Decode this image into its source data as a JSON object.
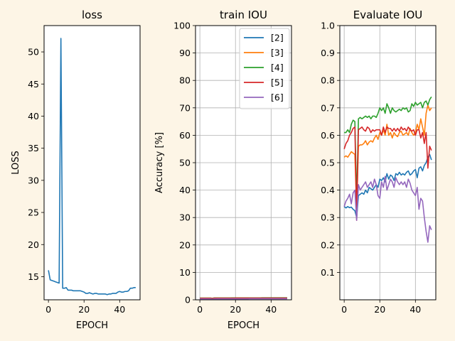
{
  "figure": {
    "background": "#fdf5e6"
  },
  "chart_data": [
    {
      "type": "line",
      "title": "loss",
      "xlabel": "EPOCH",
      "ylabel": "LOSS",
      "xlim": [
        -2.45,
        51.45
      ],
      "ylim": [
        11.4,
        54.1
      ],
      "xticks": [
        0,
        20,
        40
      ],
      "yticks": [
        15,
        20,
        25,
        30,
        35,
        40,
        45,
        50
      ],
      "grid": false,
      "series": [
        {
          "color": "#1f77b4",
          "x": [
            0,
            1,
            2,
            3,
            4,
            5,
            6,
            7,
            8,
            9,
            10,
            11,
            12,
            13,
            14,
            15,
            16,
            17,
            18,
            19,
            20,
            21,
            22,
            23,
            24,
            25,
            26,
            27,
            28,
            29,
            30,
            31,
            32,
            33,
            34,
            35,
            36,
            37,
            38,
            39,
            40,
            41,
            42,
            43,
            44,
            45,
            46,
            47,
            48,
            49
          ],
          "y": [
            16.0,
            14.5,
            14.4,
            14.3,
            14.2,
            14.1,
            14.0,
            52.1,
            13.2,
            13.2,
            13.3,
            12.9,
            12.9,
            12.9,
            12.8,
            12.8,
            12.8,
            12.8,
            12.8,
            12.7,
            12.6,
            12.4,
            12.4,
            12.5,
            12.4,
            12.3,
            12.4,
            12.4,
            12.3,
            12.3,
            12.3,
            12.3,
            12.3,
            12.2,
            12.3,
            12.3,
            12.4,
            12.4,
            12.4,
            12.6,
            12.7,
            12.6,
            12.6,
            12.7,
            12.7,
            12.8,
            13.2,
            13.2,
            13.3,
            13.3
          ]
        }
      ]
    },
    {
      "type": "line",
      "title": "train IOU",
      "xlabel": "EPOCH",
      "ylabel": "Accuracy [%]",
      "xlim": [
        -2.45,
        51.45
      ],
      "ylim": [
        0,
        100
      ],
      "xticks": [
        0,
        20,
        40
      ],
      "yticks": [
        0,
        10,
        20,
        30,
        40,
        50,
        60,
        70,
        80,
        90,
        100
      ],
      "grid": true,
      "legend_position": "top-right",
      "series": [
        {
          "name": "[2]",
          "color": "#1f77b4",
          "y": [
            0.45,
            0.45,
            0.45,
            0.45,
            0.46,
            0.46,
            0.46,
            0.35,
            0.47,
            0.47,
            0.48,
            0.48,
            0.48,
            0.48,
            0.48,
            0.48,
            0.49,
            0.49,
            0.49,
            0.49,
            0.49,
            0.49,
            0.49,
            0.5,
            0.5,
            0.5,
            0.5,
            0.5,
            0.5,
            0.5,
            0.5,
            0.5,
            0.5,
            0.5,
            0.51,
            0.51,
            0.51,
            0.51,
            0.51,
            0.51,
            0.51,
            0.51,
            0.51,
            0.52,
            0.52,
            0.52,
            0.52,
            0.52,
            0.52,
            0.52
          ]
        },
        {
          "name": "[3]",
          "color": "#ff7f0e",
          "y": [
            0.55,
            0.55,
            0.56,
            0.56,
            0.57,
            0.57,
            0.57,
            0.45,
            0.58,
            0.58,
            0.59,
            0.59,
            0.59,
            0.59,
            0.6,
            0.6,
            0.6,
            0.6,
            0.6,
            0.61,
            0.61,
            0.61,
            0.61,
            0.61,
            0.61,
            0.62,
            0.62,
            0.62,
            0.62,
            0.62,
            0.62,
            0.62,
            0.63,
            0.63,
            0.63,
            0.63,
            0.63,
            0.63,
            0.64,
            0.64,
            0.64,
            0.64,
            0.64,
            0.64,
            0.64,
            0.65,
            0.65,
            0.65,
            0.65,
            0.65
          ]
        },
        {
          "name": "[4]",
          "color": "#2ca02c",
          "y": [
            0.62,
            0.63,
            0.63,
            0.64,
            0.64,
            0.65,
            0.65,
            0.55,
            0.66,
            0.66,
            0.67,
            0.67,
            0.67,
            0.67,
            0.68,
            0.68,
            0.68,
            0.68,
            0.69,
            0.69,
            0.69,
            0.69,
            0.69,
            0.7,
            0.7,
            0.7,
            0.7,
            0.7,
            0.7,
            0.71,
            0.71,
            0.71,
            0.71,
            0.71,
            0.71,
            0.72,
            0.72,
            0.72,
            0.72,
            0.72,
            0.72,
            0.73,
            0.73,
            0.73,
            0.73,
            0.73,
            0.73,
            0.74,
            0.74,
            0.74
          ]
        },
        {
          "name": "[5]",
          "color": "#d62728",
          "y": [
            0.55,
            0.56,
            0.56,
            0.57,
            0.57,
            0.58,
            0.58,
            0.48,
            0.59,
            0.59,
            0.6,
            0.6,
            0.6,
            0.6,
            0.6,
            0.61,
            0.61,
            0.61,
            0.61,
            0.61,
            0.62,
            0.62,
            0.62,
            0.62,
            0.62,
            0.62,
            0.62,
            0.63,
            0.63,
            0.63,
            0.63,
            0.63,
            0.63,
            0.63,
            0.63,
            0.64,
            0.64,
            0.64,
            0.64,
            0.64,
            0.64,
            0.64,
            0.64,
            0.64,
            0.65,
            0.65,
            0.65,
            0.65,
            0.65,
            0.65
          ]
        },
        {
          "name": "[6]",
          "color": "#9467bd",
          "y": [
            0.3,
            0.3,
            0.3,
            0.31,
            0.31,
            0.31,
            0.32,
            0.22,
            0.32,
            0.32,
            0.33,
            0.33,
            0.33,
            0.33,
            0.33,
            0.34,
            0.34,
            0.34,
            0.34,
            0.34,
            0.34,
            0.35,
            0.35,
            0.35,
            0.35,
            0.35,
            0.35,
            0.35,
            0.36,
            0.36,
            0.36,
            0.36,
            0.36,
            0.36,
            0.36,
            0.36,
            0.37,
            0.37,
            0.37,
            0.37,
            0.37,
            0.37,
            0.37,
            0.37,
            0.37,
            0.38,
            0.38,
            0.38,
            0.38,
            0.38
          ]
        }
      ]
    },
    {
      "type": "line",
      "title": "Evaluate IOU",
      "xlabel": "",
      "ylabel": "",
      "xlim": [
        -2.45,
        51.45
      ],
      "ylim": [
        0,
        1
      ],
      "xticks": [
        0,
        20,
        40
      ],
      "yticks": [
        0.1,
        0.2,
        0.3,
        0.4,
        0.5,
        0.6,
        0.7,
        0.8,
        0.9,
        1.0
      ],
      "grid": true,
      "series": [
        {
          "name": "[2]",
          "color": "#1f77b4",
          "y": [
            0.34,
            0.335,
            0.34,
            0.336,
            0.338,
            0.33,
            0.325,
            0.3,
            0.38,
            0.385,
            0.39,
            0.385,
            0.4,
            0.39,
            0.41,
            0.405,
            0.4,
            0.41,
            0.42,
            0.41,
            0.44,
            0.435,
            0.445,
            0.43,
            0.46,
            0.44,
            0.455,
            0.45,
            0.435,
            0.46,
            0.455,
            0.465,
            0.455,
            0.46,
            0.455,
            0.465,
            0.47,
            0.455,
            0.46,
            0.47,
            0.475,
            0.445,
            0.48,
            0.485,
            0.47,
            0.49,
            0.5,
            0.52,
            0.53,
            0.51
          ]
        },
        {
          "name": "[3]",
          "color": "#ff7f0e",
          "y": [
            0.52,
            0.525,
            0.52,
            0.53,
            0.54,
            0.535,
            0.53,
            0.33,
            0.56,
            0.565,
            0.565,
            0.57,
            0.58,
            0.565,
            0.575,
            0.58,
            0.575,
            0.59,
            0.6,
            0.585,
            0.61,
            0.6,
            0.62,
            0.6,
            0.64,
            0.6,
            0.61,
            0.59,
            0.61,
            0.6,
            0.595,
            0.61,
            0.615,
            0.6,
            0.605,
            0.61,
            0.6,
            0.625,
            0.61,
            0.6,
            0.61,
            0.64,
            0.62,
            0.66,
            0.63,
            0.6,
            0.68,
            0.71,
            0.69,
            0.7
          ]
        },
        {
          "name": "[4]",
          "color": "#2ca02c",
          "y": [
            0.61,
            0.61,
            0.62,
            0.61,
            0.64,
            0.655,
            0.65,
            0.36,
            0.66,
            0.665,
            0.66,
            0.665,
            0.67,
            0.665,
            0.67,
            0.66,
            0.67,
            0.67,
            0.665,
            0.68,
            0.7,
            0.69,
            0.7,
            0.68,
            0.715,
            0.7,
            0.68,
            0.7,
            0.69,
            0.685,
            0.69,
            0.695,
            0.69,
            0.7,
            0.695,
            0.7,
            0.685,
            0.69,
            0.715,
            0.705,
            0.72,
            0.71,
            0.715,
            0.72,
            0.7,
            0.72,
            0.725,
            0.71,
            0.73,
            0.74
          ]
        },
        {
          "name": "[5]",
          "color": "#d62728",
          "y": [
            0.55,
            0.57,
            0.58,
            0.6,
            0.61,
            0.625,
            0.63,
            0.29,
            0.62,
            0.625,
            0.63,
            0.62,
            0.615,
            0.63,
            0.625,
            0.61,
            0.62,
            0.615,
            0.62,
            0.62,
            0.62,
            0.6,
            0.63,
            0.61,
            0.63,
            0.625,
            0.625,
            0.615,
            0.625,
            0.615,
            0.625,
            0.615,
            0.63,
            0.62,
            0.625,
            0.615,
            0.63,
            0.62,
            0.615,
            0.62,
            0.6,
            0.62,
            0.62,
            0.59,
            0.61,
            0.57,
            0.61,
            0.48,
            0.56,
            0.545
          ]
        },
        {
          "name": "[6]",
          "color": "#9467bd",
          "y": [
            0.34,
            0.36,
            0.37,
            0.385,
            0.35,
            0.39,
            0.4,
            0.29,
            0.42,
            0.4,
            0.41,
            0.42,
            0.43,
            0.41,
            0.42,
            0.43,
            0.41,
            0.44,
            0.42,
            0.38,
            0.37,
            0.43,
            0.41,
            0.45,
            0.4,
            0.42,
            0.44,
            0.43,
            0.41,
            0.445,
            0.43,
            0.42,
            0.43,
            0.42,
            0.43,
            0.41,
            0.44,
            0.425,
            0.4,
            0.39,
            0.38,
            0.41,
            0.33,
            0.37,
            0.36,
            0.3,
            0.25,
            0.21,
            0.27,
            0.255
          ]
        }
      ]
    }
  ]
}
